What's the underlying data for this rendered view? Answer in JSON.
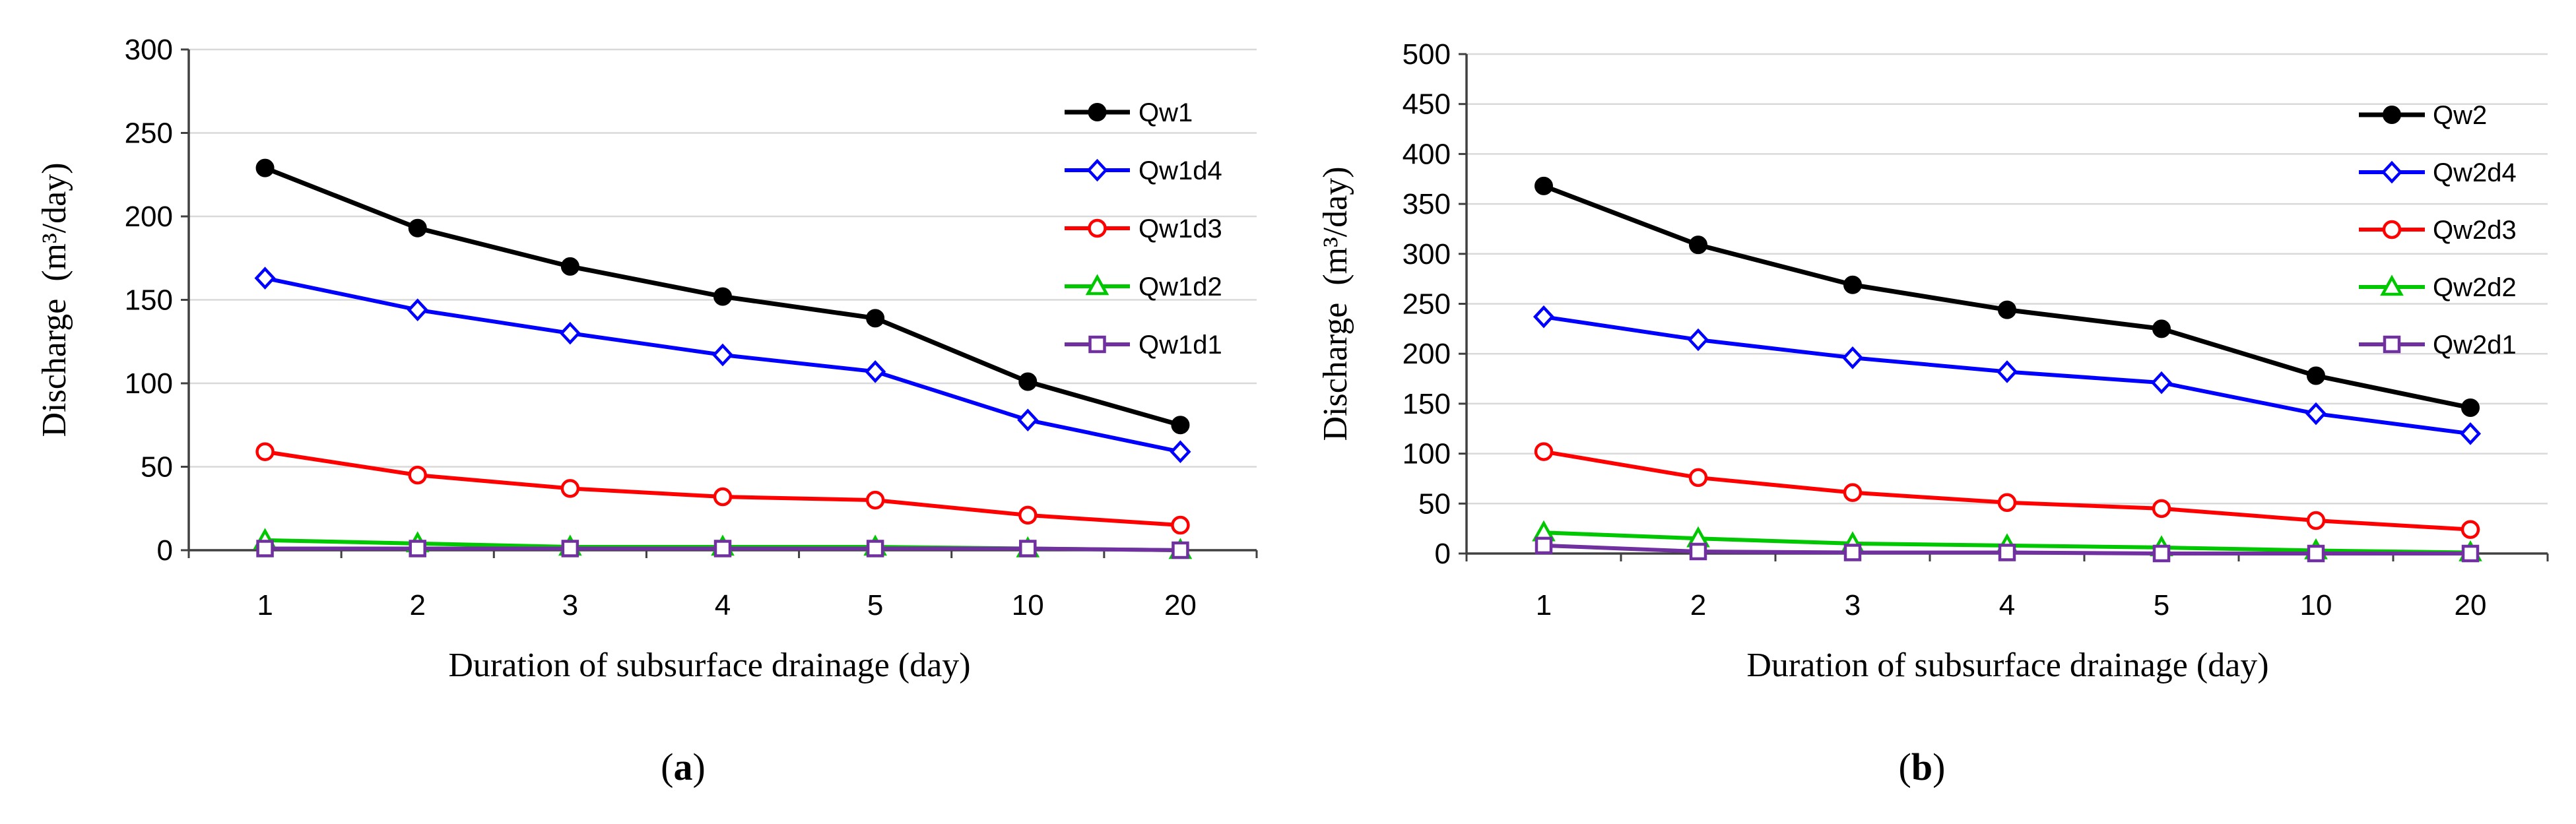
{
  "chart_data": [
    {
      "type": "line",
      "panel_label": {
        "open": "(",
        "letter": "a",
        "close": ")"
      },
      "xlabel": "Duration of subsurface drainage (day)",
      "ylabel": "Discharge  (m³/day)",
      "categories": [
        "1",
        "2",
        "3",
        "4",
        "5",
        "10",
        "20"
      ],
      "ylim": [
        0,
        300
      ],
      "yticks": [
        0,
        50,
        100,
        150,
        200,
        250,
        300
      ],
      "grid": true,
      "legend_position": "top-right",
      "series": [
        {
          "name": "Qw1",
          "values": [
            229,
            193,
            170,
            152,
            139,
            101,
            75
          ],
          "color": "#000000",
          "marker": "filled-circle"
        },
        {
          "name": "Qw1d4",
          "values": [
            163,
            144,
            130,
            117,
            107,
            78,
            59
          ],
          "color": "#0000ff",
          "marker": "open-diamond"
        },
        {
          "name": "Qw1d3",
          "values": [
            59,
            45,
            37,
            32,
            30,
            21,
            15
          ],
          "color": "#ff0000",
          "marker": "open-circle"
        },
        {
          "name": "Qw1d2",
          "values": [
            6,
            4,
            2,
            2,
            2,
            1,
            0
          ],
          "color": "#00c800",
          "marker": "open-triangle"
        },
        {
          "name": "Qw1d1",
          "values": [
            1,
            1,
            1,
            1,
            1,
            1,
            0
          ],
          "color": "#7030a0",
          "marker": "open-square"
        }
      ]
    },
    {
      "type": "line",
      "panel_label": {
        "open": "(",
        "letter": "b",
        "close": ")"
      },
      "xlabel": "Duration of subsurface drainage (day)",
      "ylabel": "Discharge  (m³/day)",
      "categories": [
        "1",
        "2",
        "3",
        "4",
        "5",
        "10",
        "20"
      ],
      "ylim": [
        0,
        500
      ],
      "yticks": [
        0,
        50,
        100,
        150,
        200,
        250,
        300,
        350,
        400,
        450,
        500
      ],
      "grid": true,
      "legend_position": "top-right",
      "series": [
        {
          "name": "Qw2",
          "values": [
            368,
            309,
            269,
            244,
            225,
            178,
            146
          ],
          "color": "#000000",
          "marker": "filled-circle"
        },
        {
          "name": "Qw2d4",
          "values": [
            237,
            214,
            196,
            182,
            171,
            140,
            120
          ],
          "color": "#0000ff",
          "marker": "open-diamond"
        },
        {
          "name": "Qw2d3",
          "values": [
            102,
            76,
            61,
            51,
            45,
            33,
            24
          ],
          "color": "#ff0000",
          "marker": "open-circle"
        },
        {
          "name": "Qw2d2",
          "values": [
            21,
            15,
            10,
            8,
            6,
            3,
            1
          ],
          "color": "#00c800",
          "marker": "open-triangle"
        },
        {
          "name": "Qw2d1",
          "values": [
            8,
            2,
            1,
            1,
            0,
            0,
            0
          ],
          "color": "#7030a0",
          "marker": "open-square"
        }
      ]
    }
  ]
}
